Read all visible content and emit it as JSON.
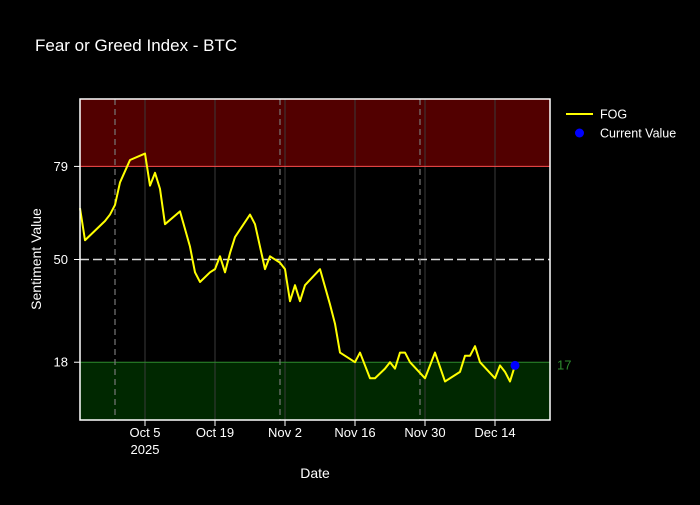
{
  "chart_data": {
    "type": "line",
    "title": "Fear or Greed Index - BTC",
    "xlabel": "Date",
    "ylabel": "Sentiment Value",
    "x_range": [
      "2025-09-22",
      "2025-12-25"
    ],
    "y_range": [
      0,
      100
    ],
    "y_ticks": [
      18,
      50,
      79
    ],
    "x_ticks": [
      {
        "date": "2025-10-05",
        "label": "Oct 5",
        "sublabel": "2025"
      },
      {
        "date": "2025-10-19",
        "label": "Oct 19",
        "sublabel": ""
      },
      {
        "date": "2025-11-02",
        "label": "Nov 2",
        "sublabel": ""
      },
      {
        "date": "2025-11-16",
        "label": "Nov 16",
        "sublabel": ""
      },
      {
        "date": "2025-11-30",
        "label": "Nov 30",
        "sublabel": ""
      },
      {
        "date": "2025-12-14",
        "label": "Dec 14",
        "sublabel": ""
      }
    ],
    "zones": [
      {
        "name": "greed",
        "from": 79,
        "to": 100,
        "fill": "#520000",
        "edge": "#ff4d4d"
      },
      {
        "name": "fear",
        "from": 0,
        "to": 18,
        "fill": "#002800",
        "edge": "#2e8b2e"
      }
    ],
    "neutral_line": 50,
    "event_lines": [
      "2025-09-29",
      "2025-11-01",
      "2025-11-29"
    ],
    "series": [
      {
        "name": "FOG",
        "color": "#ffff00",
        "points": [
          [
            "2025-09-22",
            66
          ],
          [
            "2025-09-23",
            56
          ],
          [
            "2025-09-25",
            59
          ],
          [
            "2025-09-27",
            62
          ],
          [
            "2025-09-28",
            64
          ],
          [
            "2025-09-29",
            67
          ],
          [
            "2025-09-30",
            74
          ],
          [
            "2025-10-02",
            81
          ],
          [
            "2025-10-05",
            83
          ],
          [
            "2025-10-06",
            73
          ],
          [
            "2025-10-07",
            77
          ],
          [
            "2025-10-08",
            72
          ],
          [
            "2025-10-09",
            61
          ],
          [
            "2025-10-12",
            65
          ],
          [
            "2025-10-14",
            54
          ],
          [
            "2025-10-15",
            46
          ],
          [
            "2025-10-16",
            43
          ],
          [
            "2025-10-18",
            46
          ],
          [
            "2025-10-19",
            47
          ],
          [
            "2025-10-20",
            51
          ],
          [
            "2025-10-21",
            46
          ],
          [
            "2025-10-22",
            52
          ],
          [
            "2025-10-23",
            57
          ],
          [
            "2025-10-26",
            64
          ],
          [
            "2025-10-27",
            61
          ],
          [
            "2025-10-28",
            54
          ],
          [
            "2025-10-29",
            47
          ],
          [
            "2025-10-30",
            51
          ],
          [
            "2025-11-01",
            49
          ],
          [
            "2025-11-02",
            47
          ],
          [
            "2025-11-03",
            37
          ],
          [
            "2025-11-04",
            42
          ],
          [
            "2025-11-05",
            37
          ],
          [
            "2025-11-06",
            42
          ],
          [
            "2025-11-09",
            47
          ],
          [
            "2025-11-11",
            36
          ],
          [
            "2025-11-12",
            30
          ],
          [
            "2025-11-13",
            21
          ],
          [
            "2025-11-16",
            18
          ],
          [
            "2025-11-17",
            21
          ],
          [
            "2025-11-18",
            17
          ],
          [
            "2025-11-19",
            13
          ],
          [
            "2025-11-20",
            13
          ],
          [
            "2025-11-22",
            16
          ],
          [
            "2025-11-23",
            18
          ],
          [
            "2025-11-24",
            16
          ],
          [
            "2025-11-25",
            21
          ],
          [
            "2025-11-26",
            21
          ],
          [
            "2025-11-27",
            18
          ],
          [
            "2025-11-30",
            13
          ],
          [
            "2025-12-02",
            21
          ],
          [
            "2025-12-04",
            12
          ],
          [
            "2025-12-07",
            15
          ],
          [
            "2025-12-08",
            20
          ],
          [
            "2025-12-09",
            20
          ],
          [
            "2025-12-10",
            23
          ],
          [
            "2025-12-11",
            18
          ],
          [
            "2025-12-14",
            13
          ],
          [
            "2025-12-15",
            17
          ],
          [
            "2025-12-16",
            15
          ],
          [
            "2025-12-17",
            12
          ],
          [
            "2025-12-18",
            17
          ]
        ]
      }
    ],
    "current": {
      "name": "Current Value",
      "date": "2025-12-18",
      "value": 17,
      "label": "17",
      "color": "#0000ff"
    },
    "legend": {
      "placement": "top-right",
      "items": [
        {
          "name": "FOG",
          "kind": "line",
          "color": "#ffff00"
        },
        {
          "name": "Current Value",
          "kind": "marker",
          "color": "#0000ff"
        }
      ]
    },
    "colors": {
      "background": "#000000",
      "axis": "#ffffff",
      "text": "#ffffff",
      "grid": "#3a3a3a",
      "event_line": "#777777",
      "neutral_line": "#d9d9d9",
      "current_label": "#2e8b2e"
    }
  }
}
